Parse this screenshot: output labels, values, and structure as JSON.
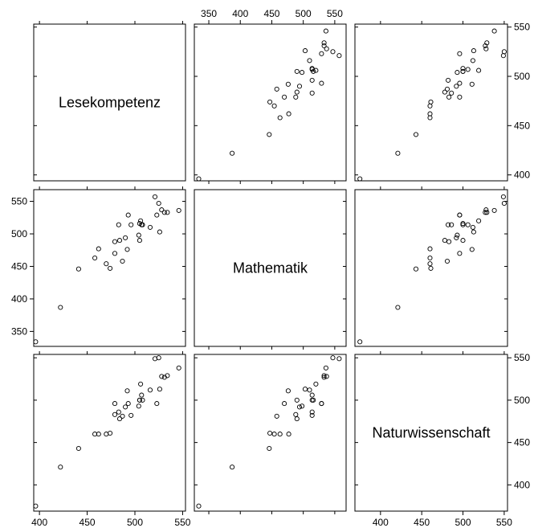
{
  "chart_data": {
    "type": "scatter",
    "kind": "scatterplot-matrix",
    "variables": [
      "Lesekompetenz",
      "Mathematik",
      "Naturwissenschaft"
    ],
    "ranges": {
      "Lesekompetenz": [
        394,
        553
      ],
      "Mathematik": [
        327,
        568
      ],
      "Naturwissenschaft": [
        369,
        554
      ]
    },
    "ticks": {
      "Lesekompetenz": [
        400,
        450,
        500,
        550
      ],
      "Mathematik": [
        350,
        400,
        450,
        500,
        550
      ],
      "Naturwissenschaft": [
        400,
        450,
        500,
        550
      ]
    },
    "observations": [
      {
        "Lesekompetenz": 396,
        "Mathematik": 334,
        "Naturwissenschaft": 375
      },
      {
        "Lesekompetenz": 422,
        "Mathematik": 387,
        "Naturwissenschaft": 421
      },
      {
        "Lesekompetenz": 441,
        "Mathematik": 446,
        "Naturwissenschaft": 443
      },
      {
        "Lesekompetenz": 458,
        "Mathematik": 463,
        "Naturwissenschaft": 460
      },
      {
        "Lesekompetenz": 462,
        "Mathematik": 477,
        "Naturwissenschaft": 460
      },
      {
        "Lesekompetenz": 470,
        "Mathematik": 454,
        "Naturwissenschaft": 460
      },
      {
        "Lesekompetenz": 474,
        "Mathematik": 447,
        "Naturwissenschaft": 461
      },
      {
        "Lesekompetenz": 479,
        "Mathematik": 470,
        "Naturwissenschaft": 496
      },
      {
        "Lesekompetenz": 479,
        "Mathematik": 488,
        "Naturwissenschaft": 483
      },
      {
        "Lesekompetenz": 483,
        "Mathematik": 514,
        "Naturwissenschaft": 486
      },
      {
        "Lesekompetenz": 484,
        "Mathematik": 490,
        "Naturwissenschaft": 478
      },
      {
        "Lesekompetenz": 487,
        "Mathematik": 458,
        "Naturwissenschaft": 481
      },
      {
        "Lesekompetenz": 490,
        "Mathematik": 494,
        "Naturwissenschaft": 492
      },
      {
        "Lesekompetenz": 492,
        "Mathematik": 476,
        "Naturwissenschaft": 511
      },
      {
        "Lesekompetenz": 493,
        "Mathematik": 529,
        "Naturwissenschaft": 496
      },
      {
        "Lesekompetenz": 496,
        "Mathematik": 514,
        "Naturwissenschaft": 482
      },
      {
        "Lesekompetenz": 504,
        "Mathematik": 498,
        "Naturwissenschaft": 493
      },
      {
        "Lesekompetenz": 505,
        "Mathematik": 490,
        "Naturwissenschaft": 500
      },
      {
        "Lesekompetenz": 505,
        "Mathematik": 516,
        "Naturwissenschaft": 500
      },
      {
        "Lesekompetenz": 506,
        "Mathematik": 520,
        "Naturwissenschaft": 519
      },
      {
        "Lesekompetenz": 507,
        "Mathematik": 514,
        "Naturwissenschaft": 506
      },
      {
        "Lesekompetenz": 508,
        "Mathematik": 514,
        "Naturwissenschaft": 500
      },
      {
        "Lesekompetenz": 516,
        "Mathematik": 510,
        "Naturwissenschaft": 512
      },
      {
        "Lesekompetenz": 521,
        "Mathematik": 557,
        "Naturwissenschaft": 549
      },
      {
        "Lesekompetenz": 523,
        "Mathematik": 529,
        "Naturwissenschaft": 496
      },
      {
        "Lesekompetenz": 525,
        "Mathematik": 547,
        "Naturwissenschaft": 550
      },
      {
        "Lesekompetenz": 526,
        "Mathematik": 503,
        "Naturwissenschaft": 513
      },
      {
        "Lesekompetenz": 528,
        "Mathematik": 537,
        "Naturwissenschaft": 528
      },
      {
        "Lesekompetenz": 531,
        "Mathematik": 533,
        "Naturwissenschaft": 527
      },
      {
        "Lesekompetenz": 534,
        "Mathematik": 533,
        "Naturwissenschaft": 529
      },
      {
        "Lesekompetenz": 546,
        "Mathematik": 536,
        "Naturwissenschaft": 538
      }
    ]
  }
}
